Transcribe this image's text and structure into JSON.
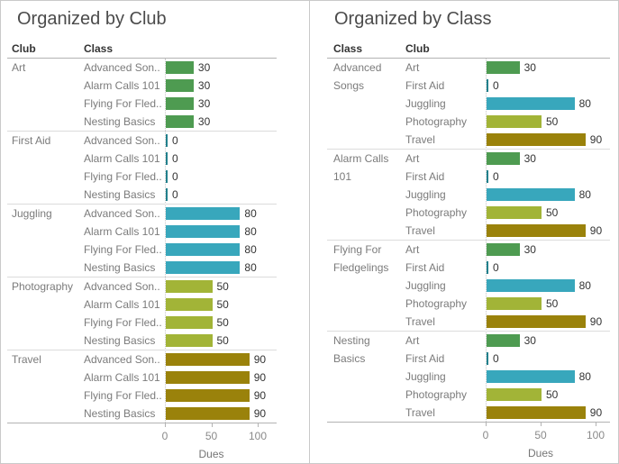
{
  "colors": {
    "art": "#4E9B51",
    "first_aid": "#21808C",
    "juggling": "#38A7BC",
    "photography": "#A2B437",
    "travel": "#9A820B"
  },
  "chart_data": [
    {
      "type": "bar",
      "orientation": "horizontal",
      "title": "Organized by Club",
      "group_field": "Club",
      "bar_field": "Class",
      "xlabel": "Dues",
      "xlim": [
        0,
        100
      ],
      "xticks": [
        0,
        50,
        100
      ],
      "value_labels": true,
      "groups": [
        {
          "name": "Art",
          "color": "art",
          "bars": [
            {
              "label": "Advanced Son..",
              "value": 30
            },
            {
              "label": "Alarm Calls 101",
              "value": 30
            },
            {
              "label": "Flying For Fled..",
              "value": 30
            },
            {
              "label": "Nesting Basics",
              "value": 30
            }
          ]
        },
        {
          "name": "First Aid",
          "color": "first_aid",
          "bars": [
            {
              "label": "Advanced Son..",
              "value": 0
            },
            {
              "label": "Alarm Calls 101",
              "value": 0
            },
            {
              "label": "Flying For Fled..",
              "value": 0
            },
            {
              "label": "Nesting Basics",
              "value": 0
            }
          ]
        },
        {
          "name": "Juggling",
          "color": "juggling",
          "bars": [
            {
              "label": "Advanced Son..",
              "value": 80
            },
            {
              "label": "Alarm Calls 101",
              "value": 80
            },
            {
              "label": "Flying For Fled..",
              "value": 80
            },
            {
              "label": "Nesting Basics",
              "value": 80
            }
          ]
        },
        {
          "name": "Photography",
          "color": "photography",
          "bars": [
            {
              "label": "Advanced Son..",
              "value": 50
            },
            {
              "label": "Alarm Calls 101",
              "value": 50
            },
            {
              "label": "Flying For Fled..",
              "value": 50
            },
            {
              "label": "Nesting Basics",
              "value": 50
            }
          ]
        },
        {
          "name": "Travel",
          "color": "travel",
          "bars": [
            {
              "label": "Advanced Son..",
              "value": 90
            },
            {
              "label": "Alarm Calls 101",
              "value": 90
            },
            {
              "label": "Flying For Fled..",
              "value": 90
            },
            {
              "label": "Nesting Basics",
              "value": 90
            }
          ]
        }
      ]
    },
    {
      "type": "bar",
      "orientation": "horizontal",
      "title": "Organized by Class",
      "group_field": "Class",
      "bar_field": "Club",
      "xlabel": "Dues",
      "xlim": [
        0,
        100
      ],
      "xticks": [
        0,
        50,
        100
      ],
      "value_labels": true,
      "groups": [
        {
          "name": "Advanced Songs",
          "bars": [
            {
              "label": "Art",
              "value": 30,
              "color": "art"
            },
            {
              "label": "First Aid",
              "value": 0,
              "color": "first_aid"
            },
            {
              "label": "Juggling",
              "value": 80,
              "color": "juggling"
            },
            {
              "label": "Photography",
              "value": 50,
              "color": "photography"
            },
            {
              "label": "Travel",
              "value": 90,
              "color": "travel"
            }
          ]
        },
        {
          "name": "Alarm Calls 101",
          "bars": [
            {
              "label": "Art",
              "value": 30,
              "color": "art"
            },
            {
              "label": "First Aid",
              "value": 0,
              "color": "first_aid"
            },
            {
              "label": "Juggling",
              "value": 80,
              "color": "juggling"
            },
            {
              "label": "Photography",
              "value": 50,
              "color": "photography"
            },
            {
              "label": "Travel",
              "value": 90,
              "color": "travel"
            }
          ]
        },
        {
          "name": "Flying For Fledgelings",
          "bars": [
            {
              "label": "Art",
              "value": 30,
              "color": "art"
            },
            {
              "label": "First Aid",
              "value": 0,
              "color": "first_aid"
            },
            {
              "label": "Juggling",
              "value": 80,
              "color": "juggling"
            },
            {
              "label": "Photography",
              "value": 50,
              "color": "photography"
            },
            {
              "label": "Travel",
              "value": 90,
              "color": "travel"
            }
          ]
        },
        {
          "name": "Nesting Basics",
          "bars": [
            {
              "label": "Art",
              "value": 30,
              "color": "art"
            },
            {
              "label": "First Aid",
              "value": 0,
              "color": "first_aid"
            },
            {
              "label": "Juggling",
              "value": 80,
              "color": "juggling"
            },
            {
              "label": "Photography",
              "value": 50,
              "color": "photography"
            },
            {
              "label": "Travel",
              "value": 90,
              "color": "travel"
            }
          ]
        }
      ]
    }
  ]
}
